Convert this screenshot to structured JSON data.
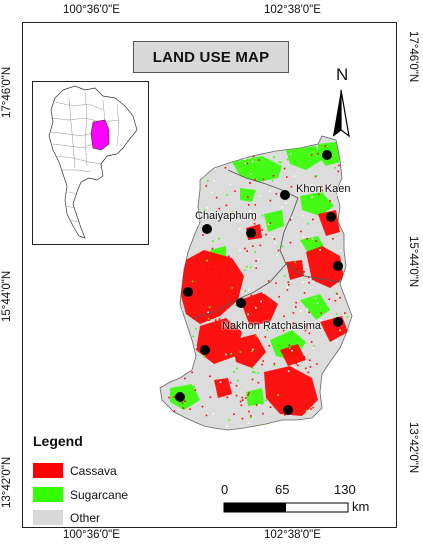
{
  "map": {
    "title": "LAND USE MAP",
    "coords": {
      "top_left": "100°36'0\"E",
      "top_right": "102°38'0\"E",
      "bottom_left": "100°36'0\"E",
      "bottom_right": "102°38'0\"E",
      "left_upper": "17°46'0\"N",
      "left_middle": "15°44'0\"N",
      "left_lower": "13°42'0\"N",
      "right_upper": "17°46'0\"N",
      "right_middle": "15°44'0\"N",
      "right_lower": "13°42'0\"N"
    },
    "north_label": "N",
    "cities": {
      "khon_kaen": "Khon Kaen",
      "chaiyaphum": "Chaiyaphum",
      "nakhon_ratchasima": "Nakhon Ratchasima"
    },
    "legend": {
      "title": "Legend",
      "items": [
        {
          "label": "Cassava",
          "color": "#ff0000"
        },
        {
          "label": "Sugarcane",
          "color": "#33ff00"
        },
        {
          "label": "Other",
          "color": "#d9d9d9"
        }
      ]
    },
    "scale": {
      "labels": [
        "0",
        "65",
        "130"
      ],
      "unit": "km"
    },
    "colors": {
      "other_land": "#dcdcdc",
      "inset_highlight": "#ff00ff",
      "boundary": "#555555"
    },
    "icons": [
      "north-arrow-icon",
      "station-marker-icon"
    ]
  }
}
